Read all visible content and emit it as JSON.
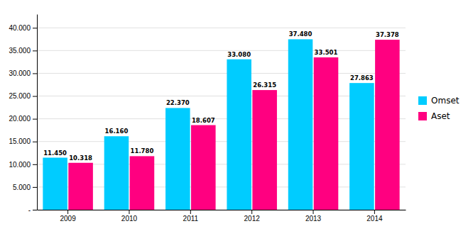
{
  "chart_data": {
    "type": "bar",
    "categories": [
      "2009",
      "2010",
      "2011",
      "2012",
      "2013",
      "2014"
    ],
    "series": [
      {
        "name": "Omset",
        "color": "#00CCFF",
        "values": [
          11450,
          16160,
          22370,
          33080,
          37480,
          27863
        ],
        "value_labels": [
          "11.450",
          "16.160",
          "22.370",
          "33.080",
          "37.480",
          "27.863"
        ]
      },
      {
        "name": "Aset",
        "color": "#FF0080",
        "values": [
          10318,
          11780,
          18607,
          26315,
          33501,
          37378
        ],
        "value_labels": [
          "10.318",
          "11.780",
          "18.607",
          "26.315",
          "33.501",
          "37.378"
        ]
      }
    ],
    "ylim": [
      0,
      43000
    ],
    "yticks": [
      {
        "value": 0,
        "label": "-"
      },
      {
        "value": 5000,
        "label": "5.000"
      },
      {
        "value": 10000,
        "label": "10.000"
      },
      {
        "value": 15000,
        "label": "15.000"
      },
      {
        "value": 20000,
        "label": "20.000"
      },
      {
        "value": 25000,
        "label": "25.000"
      },
      {
        "value": 30000,
        "label": "30.000"
      },
      {
        "value": 35000,
        "label": "35.000"
      },
      {
        "value": 40000,
        "label": "40.000"
      }
    ],
    "grid": true,
    "legend": "right",
    "data_labels": true
  }
}
